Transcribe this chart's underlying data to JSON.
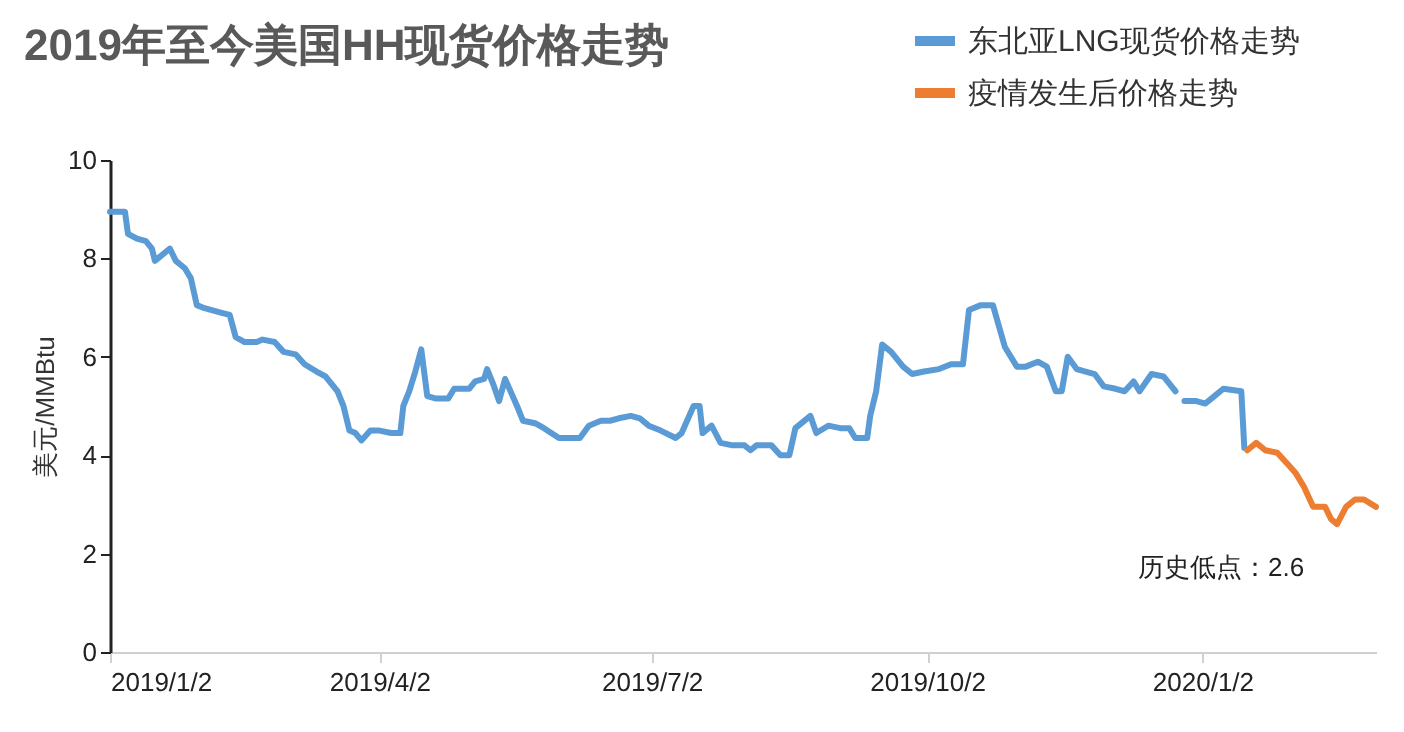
{
  "chart_data": {
    "type": "line",
    "title": "2019年至今美国HH现货价格走势",
    "ylabel": "美元/MMBtu",
    "xlim": [
      "2019-01-02",
      "2020-02-29"
    ],
    "xticks": [
      {
        "value": "2019-01-02",
        "label": "2019/1/2"
      },
      {
        "value": "2019-04-02",
        "label": "2019/4/2"
      },
      {
        "value": "2019-07-02",
        "label": "2019/7/2"
      },
      {
        "value": "2019-10-02",
        "label": "2019/10/2"
      },
      {
        "value": "2020-01-02",
        "label": "2020/1/2"
      }
    ],
    "ylim": [
      0,
      10
    ],
    "yticks": [
      0,
      2,
      4,
      6,
      8,
      10
    ],
    "grid": false,
    "legend": "top right",
    "annotations": [
      {
        "text": "历史低点：2.6",
        "x": "2020-02-16",
        "y": 2.6
      }
    ],
    "series": [
      {
        "name": "东北亚LNG现货价格走势",
        "color": "#5b9bd5",
        "x": [
          "2019-01-02",
          "2019-01-07",
          "2019-01-08",
          "2019-01-11",
          "2019-01-14",
          "2019-01-16",
          "2019-01-17",
          "2019-01-21",
          "2019-01-22",
          "2019-01-24",
          "2019-01-27",
          "2019-01-29",
          "2019-01-31",
          "2019-02-02",
          "2019-02-05",
          "2019-02-08",
          "2019-02-11",
          "2019-02-13",
          "2019-02-16",
          "2019-02-20",
          "2019-02-22",
          "2019-02-26",
          "2019-03-01",
          "2019-03-05",
          "2019-03-08",
          "2019-03-12",
          "2019-03-15",
          "2019-03-19",
          "2019-03-21",
          "2019-03-23",
          "2019-03-25",
          "2019-03-27",
          "2019-03-30",
          "2019-04-02",
          "2019-04-06",
          "2019-04-09",
          "2019-04-10",
          "2019-04-12",
          "2019-04-14",
          "2019-04-16",
          "2019-04-18",
          "2019-04-21",
          "2019-04-25",
          "2019-04-27",
          "2019-05-02",
          "2019-05-04",
          "2019-05-07",
          "2019-05-08",
          "2019-05-10",
          "2019-05-12",
          "2019-05-14",
          "2019-05-18",
          "2019-05-20",
          "2019-05-24",
          "2019-05-27",
          "2019-06-01",
          "2019-06-08",
          "2019-06-11",
          "2019-06-15",
          "2019-06-18",
          "2019-06-21",
          "2019-06-25",
          "2019-06-28",
          "2019-07-01",
          "2019-07-05",
          "2019-07-10",
          "2019-07-12",
          "2019-07-16",
          "2019-07-18",
          "2019-07-19",
          "2019-07-22",
          "2019-07-25",
          "2019-07-29",
          "2019-08-02",
          "2019-08-04",
          "2019-08-06",
          "2019-08-11",
          "2019-08-14",
          "2019-08-17",
          "2019-08-19",
          "2019-08-24",
          "2019-08-26",
          "2019-08-30",
          "2019-09-03",
          "2019-09-06",
          "2019-09-08",
          "2019-09-12",
          "2019-09-13",
          "2019-09-15",
          "2019-09-17",
          "2019-09-20",
          "2019-09-24",
          "2019-09-27",
          "2019-10-01",
          "2019-10-06",
          "2019-10-10",
          "2019-10-14",
          "2019-10-16",
          "2019-10-20",
          "2019-10-24",
          "2019-10-28",
          "2019-11-01",
          "2019-11-04",
          "2019-11-08",
          "2019-11-11",
          "2019-11-14",
          "2019-11-16",
          "2019-11-18",
          "2019-11-21",
          "2019-11-27",
          "2019-11-30",
          "2019-12-04",
          "2019-12-07",
          "2019-12-10",
          "2019-12-12",
          "2019-12-16",
          "2019-12-20",
          "2019-12-24",
          "2019-12-26",
          "2019-12-27",
          "2019-12-31",
          "2020-01-03",
          "2020-01-06",
          "2020-01-09",
          "2020-01-15",
          "2020-01-16"
        ],
        "values": [
          8.95,
          8.95,
          8.5,
          8.4,
          8.35,
          8.2,
          7.95,
          8.15,
          8.2,
          7.95,
          7.8,
          7.6,
          7.05,
          7.0,
          6.95,
          6.9,
          6.85,
          6.4,
          6.3,
          6.3,
          6.35,
          6.3,
          6.1,
          6.05,
          5.85,
          5.7,
          5.6,
          5.3,
          5.0,
          4.5,
          4.45,
          4.3,
          4.5,
          4.5,
          4.45,
          4.45,
          5.0,
          5.3,
          5.7,
          6.15,
          5.2,
          5.15,
          5.15,
          5.35,
          5.35,
          5.5,
          5.55,
          5.75,
          5.45,
          5.1,
          5.55,
          5.0,
          4.7,
          4.65,
          4.55,
          4.35,
          4.35,
          4.6,
          4.7,
          4.7,
          4.75,
          4.8,
          4.75,
          4.6,
          4.5,
          4.35,
          4.45,
          5.0,
          5.0,
          4.45,
          4.6,
          4.25,
          4.2,
          4.2,
          4.1,
          4.2,
          4.2,
          4.0,
          4.0,
          4.55,
          4.8,
          4.45,
          4.6,
          4.55,
          4.55,
          4.35,
          4.35,
          4.8,
          5.3,
          6.25,
          6.1,
          5.8,
          5.65,
          5.7,
          5.75,
          5.85,
          5.85,
          6.95,
          7.05,
          7.05,
          6.2,
          5.8,
          5.8,
          5.9,
          5.8,
          5.3,
          5.3,
          6.0,
          5.75,
          5.65,
          5.4,
          5.35,
          5.3,
          5.5,
          5.3,
          5.65,
          5.6,
          5.3,
          null,
          5.1,
          5.1,
          5.05,
          5.2,
          5.35,
          5.3,
          4.15
        ]
      },
      {
        "name": "疫情发生后价格走势",
        "color": "#ed7d31",
        "x": [
          "2020-01-17",
          "2020-01-20",
          "2020-01-23",
          "2020-01-27",
          "2020-01-30",
          "2020-02-02",
          "2020-02-05",
          "2020-02-08",
          "2020-02-12",
          "2020-02-14",
          "2020-02-16",
          "2020-02-19",
          "2020-02-22",
          "2020-02-25",
          "2020-02-29"
        ],
        "values": [
          4.1,
          4.25,
          4.1,
          4.05,
          3.85,
          3.65,
          3.35,
          2.95,
          2.95,
          2.7,
          2.6,
          2.95,
          3.1,
          3.1,
          2.95
        ]
      }
    ]
  }
}
